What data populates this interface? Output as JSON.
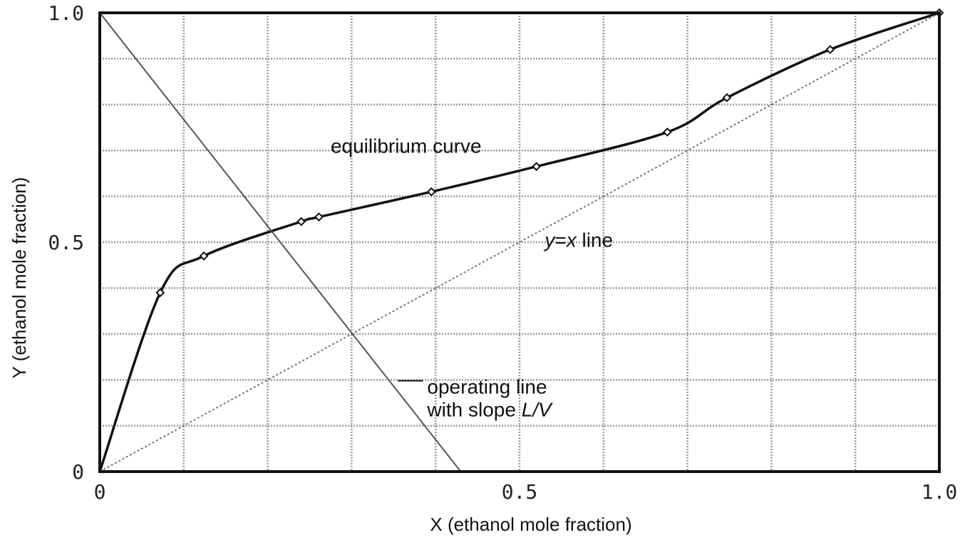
{
  "chart_data": {
    "type": "line",
    "xlabel": "X (ethanol mole fraction)",
    "ylabel": "Y (ethanol mole fraction)",
    "xlim": [
      0,
      1.0
    ],
    "ylim": [
      0,
      1.0
    ],
    "x_tick_labels": [
      {
        "value": 0,
        "label": "0"
      },
      {
        "value": 0.5,
        "label": "0.5"
      },
      {
        "value": 1.0,
        "label": "1.0"
      }
    ],
    "y_tick_labels": [
      {
        "value": 0,
        "label": "0"
      },
      {
        "value": 0.5,
        "label": "0.5"
      },
      {
        "value": 1.0,
        "label": "1.0"
      }
    ],
    "grid": true,
    "grid_step": 0.1,
    "series": [
      {
        "key": "equilibrium",
        "style": "solid",
        "color": "#111111",
        "markers": true,
        "points": [
          {
            "x": 0.0,
            "y": 0.0
          },
          {
            "x": 0.072,
            "y": 0.39
          },
          {
            "x": 0.124,
            "y": 0.47
          },
          {
            "x": 0.24,
            "y": 0.545
          },
          {
            "x": 0.261,
            "y": 0.555
          },
          {
            "x": 0.395,
            "y": 0.61
          },
          {
            "x": 0.52,
            "y": 0.665
          },
          {
            "x": 0.676,
            "y": 0.74
          },
          {
            "x": 0.747,
            "y": 0.815
          },
          {
            "x": 0.87,
            "y": 0.92
          },
          {
            "x": 1.0,
            "y": 1.0
          }
        ]
      },
      {
        "key": "diagonal",
        "style": "dotted",
        "color": "#777777",
        "markers": false,
        "points": [
          {
            "x": 0.0,
            "y": 0.0
          },
          {
            "x": 1.0,
            "y": 1.0
          }
        ]
      },
      {
        "key": "operating",
        "style": "solid-thin",
        "color": "#555555",
        "markers": false,
        "points": [
          {
            "x": 0.0,
            "y": 1.0
          },
          {
            "x": 0.43,
            "y": 0.0
          }
        ]
      }
    ],
    "annotations": {
      "equilibrium": {
        "text": "equilibrium curve",
        "x": 0.275,
        "y": 0.695
      },
      "yx_line": {
        "var1": "y",
        "eq": "=",
        "var2": "x",
        "rest": " line",
        "x": 0.53,
        "y": 0.49
      },
      "operating_1": {
        "text": "operating line",
        "x": 0.39,
        "y": 0.17
      },
      "operating_2_prefix": "with slope ",
      "operating_2_italic": "L/V",
      "operating_2_pos": {
        "x": 0.39,
        "y": 0.12
      },
      "leader": {
        "x1": 0.355,
        "y1": 0.198,
        "x2": 0.385,
        "y2": 0.198
      }
    }
  }
}
